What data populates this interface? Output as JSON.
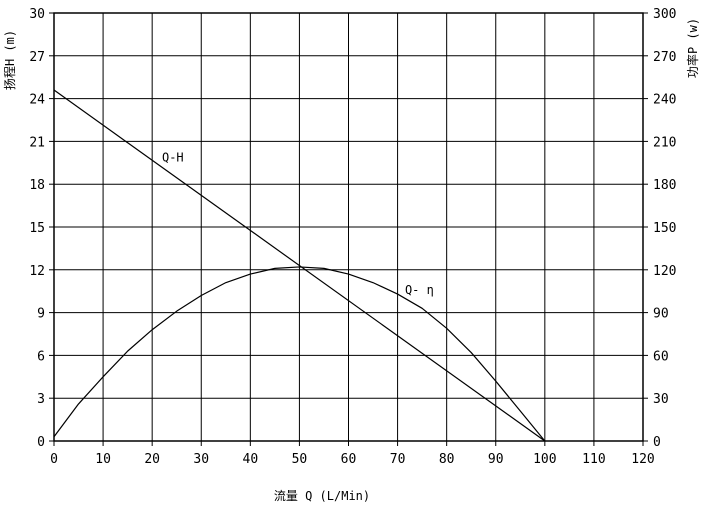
{
  "chart_data": {
    "type": "line",
    "xlabel": "流量 Q (L/Min)",
    "ylabel": "扬程H (m)",
    "y2label": "功率P (w)",
    "xlim": [
      0,
      120
    ],
    "ylim": [
      0,
      30
    ],
    "y2lim": [
      0,
      300
    ],
    "x_ticks": [
      "0",
      "10",
      "20",
      "30",
      "40",
      "50",
      "60",
      "70",
      "80",
      "90",
      "100",
      "110",
      "120"
    ],
    "y_ticks": [
      "0",
      "3",
      "6",
      "9",
      "12",
      "15",
      "18",
      "21",
      "24",
      "27",
      "30"
    ],
    "y2_ticks": [
      "0",
      "30",
      "60",
      "90",
      "120",
      "150",
      "180",
      "210",
      "240",
      "270",
      "300"
    ],
    "grid": true,
    "series": [
      {
        "name": "Q-H",
        "axis": "left",
        "x": [
          0,
          100
        ],
        "y": [
          24.6,
          0
        ]
      },
      {
        "name": "Q- η",
        "axis": "left",
        "x": [
          0,
          5,
          10,
          15,
          20,
          25,
          30,
          35,
          40,
          45,
          50,
          55,
          60,
          65,
          70,
          75,
          80,
          85,
          90,
          95,
          100
        ],
        "y": [
          0.3,
          2.6,
          4.5,
          6.3,
          7.8,
          9.1,
          10.2,
          11.1,
          11.7,
          12.1,
          12.2,
          12.1,
          11.7,
          11.1,
          10.3,
          9.3,
          7.9,
          6.2,
          4.2,
          2.1,
          0
        ]
      }
    ]
  }
}
